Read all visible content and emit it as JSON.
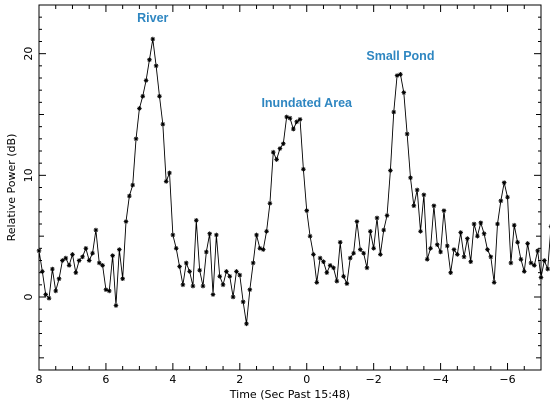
{
  "chart_data": {
    "type": "line",
    "xlabel": "Time (Sec Past 15:48)",
    "ylabel": "Relative Power (dB)",
    "xlim": [
      8,
      -7
    ],
    "ylim": [
      -6,
      24
    ],
    "x_reversed": true,
    "x_ticks": [
      8,
      6,
      4,
      2,
      0,
      -2,
      -4,
      -6
    ],
    "y_ticks": [
      0,
      10,
      20
    ],
    "grid": false,
    "marker": "asterisk",
    "line_color": "#000000",
    "annotations": [
      {
        "text": "River",
        "x": 4.6,
        "y": 22.6
      },
      {
        "text": "Inundated Area",
        "x": 0.0,
        "y": 15.6
      },
      {
        "text": "Small Pond",
        "x": -2.8,
        "y": 19.5
      }
    ],
    "series": [
      {
        "points": [
          [
            8.0,
            3.8
          ],
          [
            7.9,
            2.1
          ],
          [
            7.8,
            0.2
          ],
          [
            7.7,
            -0.1
          ],
          [
            7.6,
            2.3
          ],
          [
            7.5,
            0.5
          ],
          [
            7.4,
            1.5
          ],
          [
            7.3,
            3.0
          ],
          [
            7.2,
            3.2
          ],
          [
            7.1,
            2.6
          ],
          [
            7.0,
            3.5
          ],
          [
            6.9,
            2.0
          ],
          [
            6.8,
            3.0
          ],
          [
            6.7,
            3.3
          ],
          [
            6.6,
            4.0
          ],
          [
            6.5,
            3.0
          ],
          [
            6.4,
            3.6
          ],
          [
            6.3,
            5.5
          ],
          [
            6.2,
            2.8
          ],
          [
            6.1,
            2.6
          ],
          [
            6.0,
            0.6
          ],
          [
            5.9,
            0.5
          ],
          [
            5.8,
            3.4
          ],
          [
            5.7,
            -0.7
          ],
          [
            5.6,
            3.9
          ],
          [
            5.5,
            1.5
          ],
          [
            5.4,
            6.2
          ],
          [
            5.3,
            8.3
          ],
          [
            5.2,
            9.2
          ],
          [
            5.1,
            13.0
          ],
          [
            5.0,
            15.5
          ],
          [
            4.9,
            16.5
          ],
          [
            4.8,
            17.8
          ],
          [
            4.7,
            19.5
          ],
          [
            4.6,
            21.2
          ],
          [
            4.5,
            19.0
          ],
          [
            4.4,
            16.5
          ],
          [
            4.3,
            14.2
          ],
          [
            4.2,
            9.5
          ],
          [
            4.1,
            10.2
          ],
          [
            4.0,
            5.1
          ],
          [
            3.9,
            4.0
          ],
          [
            3.8,
            2.5
          ],
          [
            3.7,
            1.0
          ],
          [
            3.6,
            2.8
          ],
          [
            3.5,
            2.1
          ],
          [
            3.4,
            0.9
          ],
          [
            3.3,
            6.3
          ],
          [
            3.2,
            2.2
          ],
          [
            3.1,
            0.9
          ],
          [
            3.0,
            3.7
          ],
          [
            2.9,
            5.2
          ],
          [
            2.8,
            0.2
          ],
          [
            2.7,
            5.1
          ],
          [
            2.6,
            1.7
          ],
          [
            2.5,
            1.0
          ],
          [
            2.4,
            2.1
          ],
          [
            2.3,
            1.7
          ],
          [
            2.2,
            0.0
          ],
          [
            2.1,
            2.1
          ],
          [
            2.0,
            1.8
          ],
          [
            1.9,
            -0.4
          ],
          [
            1.8,
            -2.2
          ],
          [
            1.7,
            0.6
          ],
          [
            1.6,
            2.8
          ],
          [
            1.5,
            5.1
          ],
          [
            1.4,
            4.0
          ],
          [
            1.3,
            3.9
          ],
          [
            1.2,
            5.4
          ],
          [
            1.1,
            7.7
          ],
          [
            1.0,
            11.9
          ],
          [
            0.9,
            11.3
          ],
          [
            0.8,
            12.2
          ],
          [
            0.7,
            12.6
          ],
          [
            0.6,
            14.8
          ],
          [
            0.5,
            14.7
          ],
          [
            0.4,
            13.8
          ],
          [
            0.3,
            14.4
          ],
          [
            0.2,
            14.6
          ],
          [
            0.1,
            10.5
          ],
          [
            0.0,
            7.1
          ],
          [
            -0.1,
            5.0
          ],
          [
            -0.2,
            3.5
          ],
          [
            -0.3,
            1.2
          ],
          [
            -0.4,
            3.2
          ],
          [
            -0.5,
            2.9
          ],
          [
            -0.6,
            2.0
          ],
          [
            -0.7,
            2.6
          ],
          [
            -0.8,
            2.4
          ],
          [
            -0.9,
            1.3
          ],
          [
            -1.0,
            4.5
          ],
          [
            -1.1,
            1.7
          ],
          [
            -1.2,
            1.1
          ],
          [
            -1.3,
            3.2
          ],
          [
            -1.4,
            3.6
          ],
          [
            -1.5,
            6.2
          ],
          [
            -1.6,
            3.9
          ],
          [
            -1.7,
            3.6
          ],
          [
            -1.8,
            2.4
          ],
          [
            -1.9,
            5.4
          ],
          [
            -2.0,
            4.0
          ],
          [
            -2.1,
            6.5
          ],
          [
            -2.2,
            3.5
          ],
          [
            -2.3,
            5.5
          ],
          [
            -2.4,
            6.7
          ],
          [
            -2.5,
            10.4
          ],
          [
            -2.6,
            15.2
          ],
          [
            -2.7,
            18.2
          ],
          [
            -2.8,
            18.3
          ],
          [
            -2.9,
            16.8
          ],
          [
            -3.0,
            13.4
          ],
          [
            -3.1,
            9.8
          ],
          [
            -3.2,
            7.5
          ],
          [
            -3.3,
            8.8
          ],
          [
            -3.4,
            5.4
          ],
          [
            -3.5,
            8.4
          ],
          [
            -3.6,
            3.1
          ],
          [
            -3.7,
            4.0
          ],
          [
            -3.8,
            7.5
          ],
          [
            -3.9,
            4.3
          ],
          [
            -4.0,
            3.7
          ],
          [
            -4.1,
            7.1
          ],
          [
            -4.2,
            4.2
          ],
          [
            -4.3,
            2.0
          ],
          [
            -4.4,
            3.9
          ],
          [
            -4.5,
            3.5
          ],
          [
            -4.6,
            5.3
          ],
          [
            -4.7,
            3.3
          ],
          [
            -4.8,
            4.8
          ],
          [
            -4.9,
            2.9
          ],
          [
            -5.0,
            6.0
          ],
          [
            -5.1,
            5.0
          ],
          [
            -5.2,
            6.1
          ],
          [
            -5.3,
            5.2
          ],
          [
            -5.4,
            3.9
          ],
          [
            -5.5,
            3.3
          ],
          [
            -5.6,
            1.2
          ],
          [
            -5.7,
            6.0
          ],
          [
            -5.8,
            7.9
          ],
          [
            -5.9,
            9.4
          ],
          [
            -6.0,
            8.2
          ],
          [
            -6.1,
            2.8
          ],
          [
            -6.2,
            5.9
          ],
          [
            -6.3,
            4.5
          ],
          [
            -6.4,
            3.1
          ],
          [
            -6.5,
            2.1
          ],
          [
            -6.6,
            4.4
          ],
          [
            -6.7,
            2.8
          ],
          [
            -6.8,
            2.6
          ],
          [
            -6.9,
            3.8
          ],
          [
            -7.0,
            1.6
          ],
          [
            -7.1,
            3.0
          ],
          [
            -7.2,
            2.3
          ],
          [
            -7.3,
            5.8
          ],
          [
            -7.4,
            3.1
          ],
          [
            -7.5,
            6.5
          ],
          [
            -7.6,
            1.8
          ],
          [
            -7.7,
            2.4
          ],
          [
            -7.8,
            1.3
          ],
          [
            -7.9,
            3.6
          ],
          [
            -8.0,
            2.2
          ]
        ]
      }
    ]
  }
}
